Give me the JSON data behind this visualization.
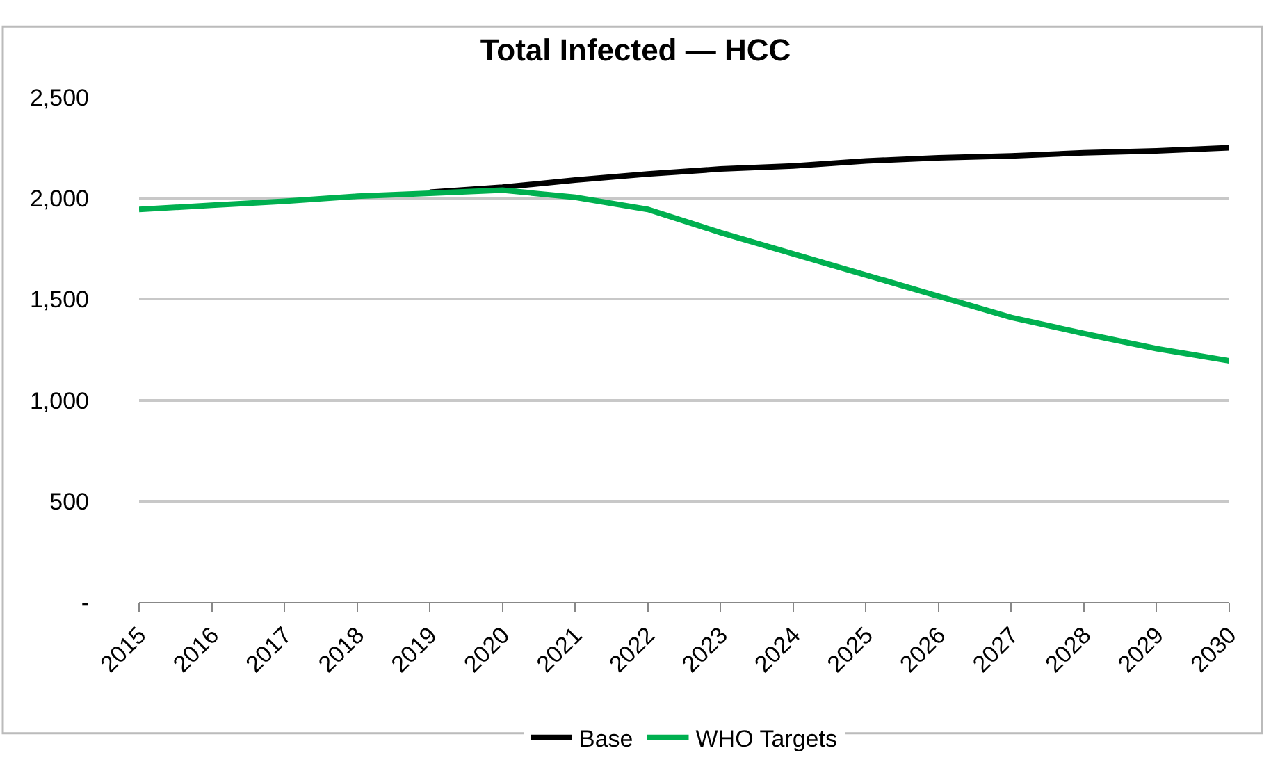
{
  "chart_data": {
    "type": "line",
    "title": "Total Infected — HCC",
    "categories": [
      "2015",
      "2016",
      "2017",
      "2018",
      "2019",
      "2020",
      "2021",
      "2022",
      "2023",
      "2024",
      "2025",
      "2026",
      "2027",
      "2028",
      "2029",
      "2030"
    ],
    "series": [
      {
        "name": "Base",
        "color": "#000000",
        "values": [
          null,
          null,
          null,
          null,
          2030,
          2055,
          2090,
          2120,
          2145,
          2160,
          2185,
          2200,
          2210,
          2225,
          2235,
          2250
        ]
      },
      {
        "name": "WHO Targets",
        "color": "#00b050",
        "values": [
          1945,
          1965,
          1985,
          2010,
          2025,
          2040,
          2005,
          1945,
          1830,
          1725,
          1620,
          1515,
          1410,
          1330,
          1255,
          1195
        ]
      }
    ],
    "ylim": [
      0,
      2500
    ],
    "yticks": [
      {
        "value": 0,
        "label": "-"
      },
      {
        "value": 500,
        "label": "500"
      },
      {
        "value": 1000,
        "label": "1,000"
      },
      {
        "value": 1500,
        "label": "1,500"
      },
      {
        "value": 2000,
        "label": "2,000"
      },
      {
        "value": 2500,
        "label": "2,500"
      }
    ],
    "grid": "y",
    "legend": "bottom",
    "marker": "none",
    "line_style": "solid"
  }
}
